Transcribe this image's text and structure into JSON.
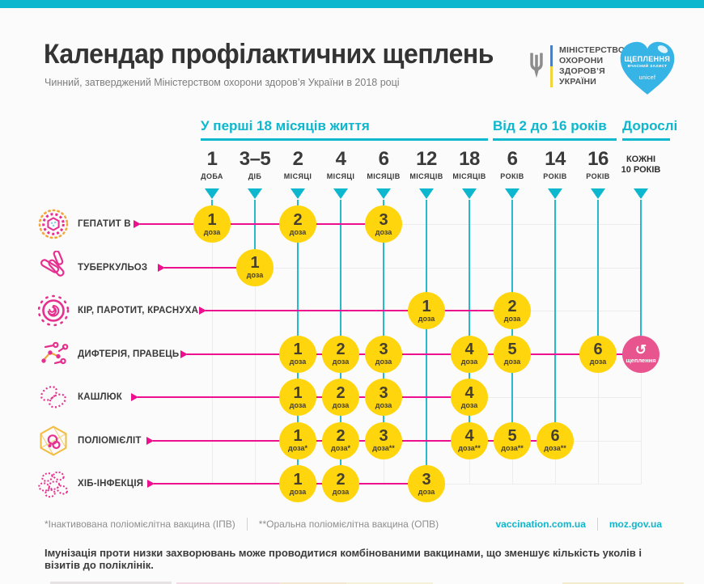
{
  "meta": {
    "title": "Календар профілактичних щеплень",
    "subtitle": "Чинний, затверджений Міністерством охорони здоров’я України в 2018 році"
  },
  "logos": {
    "moz": {
      "lines": [
        "МІНІСТЕРСТВО",
        "ОХОРОНИ",
        "ЗДОРОВ’Я",
        "УКРАЇНИ"
      ]
    },
    "heart": {
      "title": "ЩЕПЛЕННЯ",
      "tagline": "ВЧАСНИЙ ЗАХИСТ",
      "brand": "unicef"
    }
  },
  "timeline": {
    "groups": [
      {
        "label": "У перші 18 місяців життя",
        "col_start": 0,
        "col_end": 6
      },
      {
        "label": "Від 2 до 16 років",
        "col_start": 7,
        "col_end": 9
      },
      {
        "label": "Дорослі",
        "col_start": 10,
        "col_end": 10
      }
    ],
    "columns": [
      {
        "value": "1",
        "unit": "ДОБА"
      },
      {
        "value": "3–5",
        "unit": "ДІБ"
      },
      {
        "value": "2",
        "unit": "МІСЯЦІ"
      },
      {
        "value": "4",
        "unit": "МІСЯЦІ"
      },
      {
        "value": "6",
        "unit": "МІСЯЦІВ"
      },
      {
        "value": "12",
        "unit": "МІСЯЦІВ"
      },
      {
        "value": "18",
        "unit": "МІСЯЦІВ"
      },
      {
        "value": "6",
        "unit": "РОКІВ"
      },
      {
        "value": "14",
        "unit": "РОКІВ"
      },
      {
        "value": "16",
        "unit": "РОКІВ"
      },
      {
        "value": "КОЖНІ",
        "unit": "10 РОКІВ",
        "adult": true
      }
    ]
  },
  "rows": [
    {
      "label": "ГЕПАТИТ В",
      "icon": "hepatitis-b-virus-icon",
      "doses": [
        {
          "col": 0,
          "num": "1",
          "sub": "доза"
        },
        {
          "col": 2,
          "num": "2",
          "sub": "доза"
        },
        {
          "col": 4,
          "num": "3",
          "sub": "доза"
        }
      ]
    },
    {
      "label": "ТУБЕРКУЛЬОЗ",
      "icon": "tuberculosis-bacteria-icon",
      "doses": [
        {
          "col": 1,
          "num": "1",
          "sub": "доза"
        }
      ]
    },
    {
      "label": "КІР, ПАРОТИТ, КРАСНУХА",
      "icon": "measles-virus-icon",
      "doses": [
        {
          "col": 5,
          "num": "1",
          "sub": "доза"
        },
        {
          "col": 7,
          "num": "2",
          "sub": "доза"
        }
      ]
    },
    {
      "label": "ДИФТЕРІЯ, ПРАВЕЦЬ",
      "icon": "diphtheria-bacteria-icon",
      "doses": [
        {
          "col": 2,
          "num": "1",
          "sub": "доза"
        },
        {
          "col": 3,
          "num": "2",
          "sub": "доза"
        },
        {
          "col": 4,
          "num": "3",
          "sub": "доза"
        },
        {
          "col": 6,
          "num": "4",
          "sub": "доза"
        },
        {
          "col": 7,
          "num": "5",
          "sub": "доза"
        },
        {
          "col": 9,
          "num": "6",
          "sub": "доза"
        }
      ],
      "revaccination": {
        "col": 10,
        "label": "щеплення"
      }
    },
    {
      "label": "КАШЛЮК",
      "icon": "pertussis-bacteria-icon",
      "doses": [
        {
          "col": 2,
          "num": "1",
          "sub": "доза"
        },
        {
          "col": 3,
          "num": "2",
          "sub": "доза"
        },
        {
          "col": 4,
          "num": "3",
          "sub": "доза"
        },
        {
          "col": 6,
          "num": "4",
          "sub": "доза"
        }
      ]
    },
    {
      "label": "ПОЛІОМІЄЛІТ",
      "icon": "polio-virus-icon",
      "doses": [
        {
          "col": 2,
          "num": "1",
          "sub": "доза*"
        },
        {
          "col": 3,
          "num": "2",
          "sub": "доза*"
        },
        {
          "col": 4,
          "num": "3",
          "sub": "доза**"
        },
        {
          "col": 6,
          "num": "4",
          "sub": "доза**"
        },
        {
          "col": 7,
          "num": "5",
          "sub": "доза**"
        },
        {
          "col": 8,
          "num": "6",
          "sub": "доза**"
        }
      ]
    },
    {
      "label": "ХІБ-ІНФЕКЦІЯ",
      "icon": "hib-bacteria-icon",
      "doses": [
        {
          "col": 2,
          "num": "1",
          "sub": "доза"
        },
        {
          "col": 3,
          "num": "2",
          "sub": "доза"
        },
        {
          "col": 5,
          "num": "3",
          "sub": "доза"
        }
      ]
    }
  ],
  "footnotes": {
    "note1": "*Інактивована поліомієлітна вакцина (ІПВ)",
    "note2": "**Оральна поліомієлітна вакцина (ОПВ)",
    "site1": "vaccination.com.ua",
    "site2": "moz.gov.ua"
  },
  "bottom_note": "Імунізація проти низки захворювань може проводитися комбінованими вакцинами, що зменшує кількість уколів і візитів до поліклінік.",
  "colors": {
    "teal": "#0db7ce",
    "magenta": "#ec0f8e",
    "dose_yellow": "#ffd60d",
    "revac_pink": "#e8548d",
    "heart_blue": "#35b4e5"
  }
}
